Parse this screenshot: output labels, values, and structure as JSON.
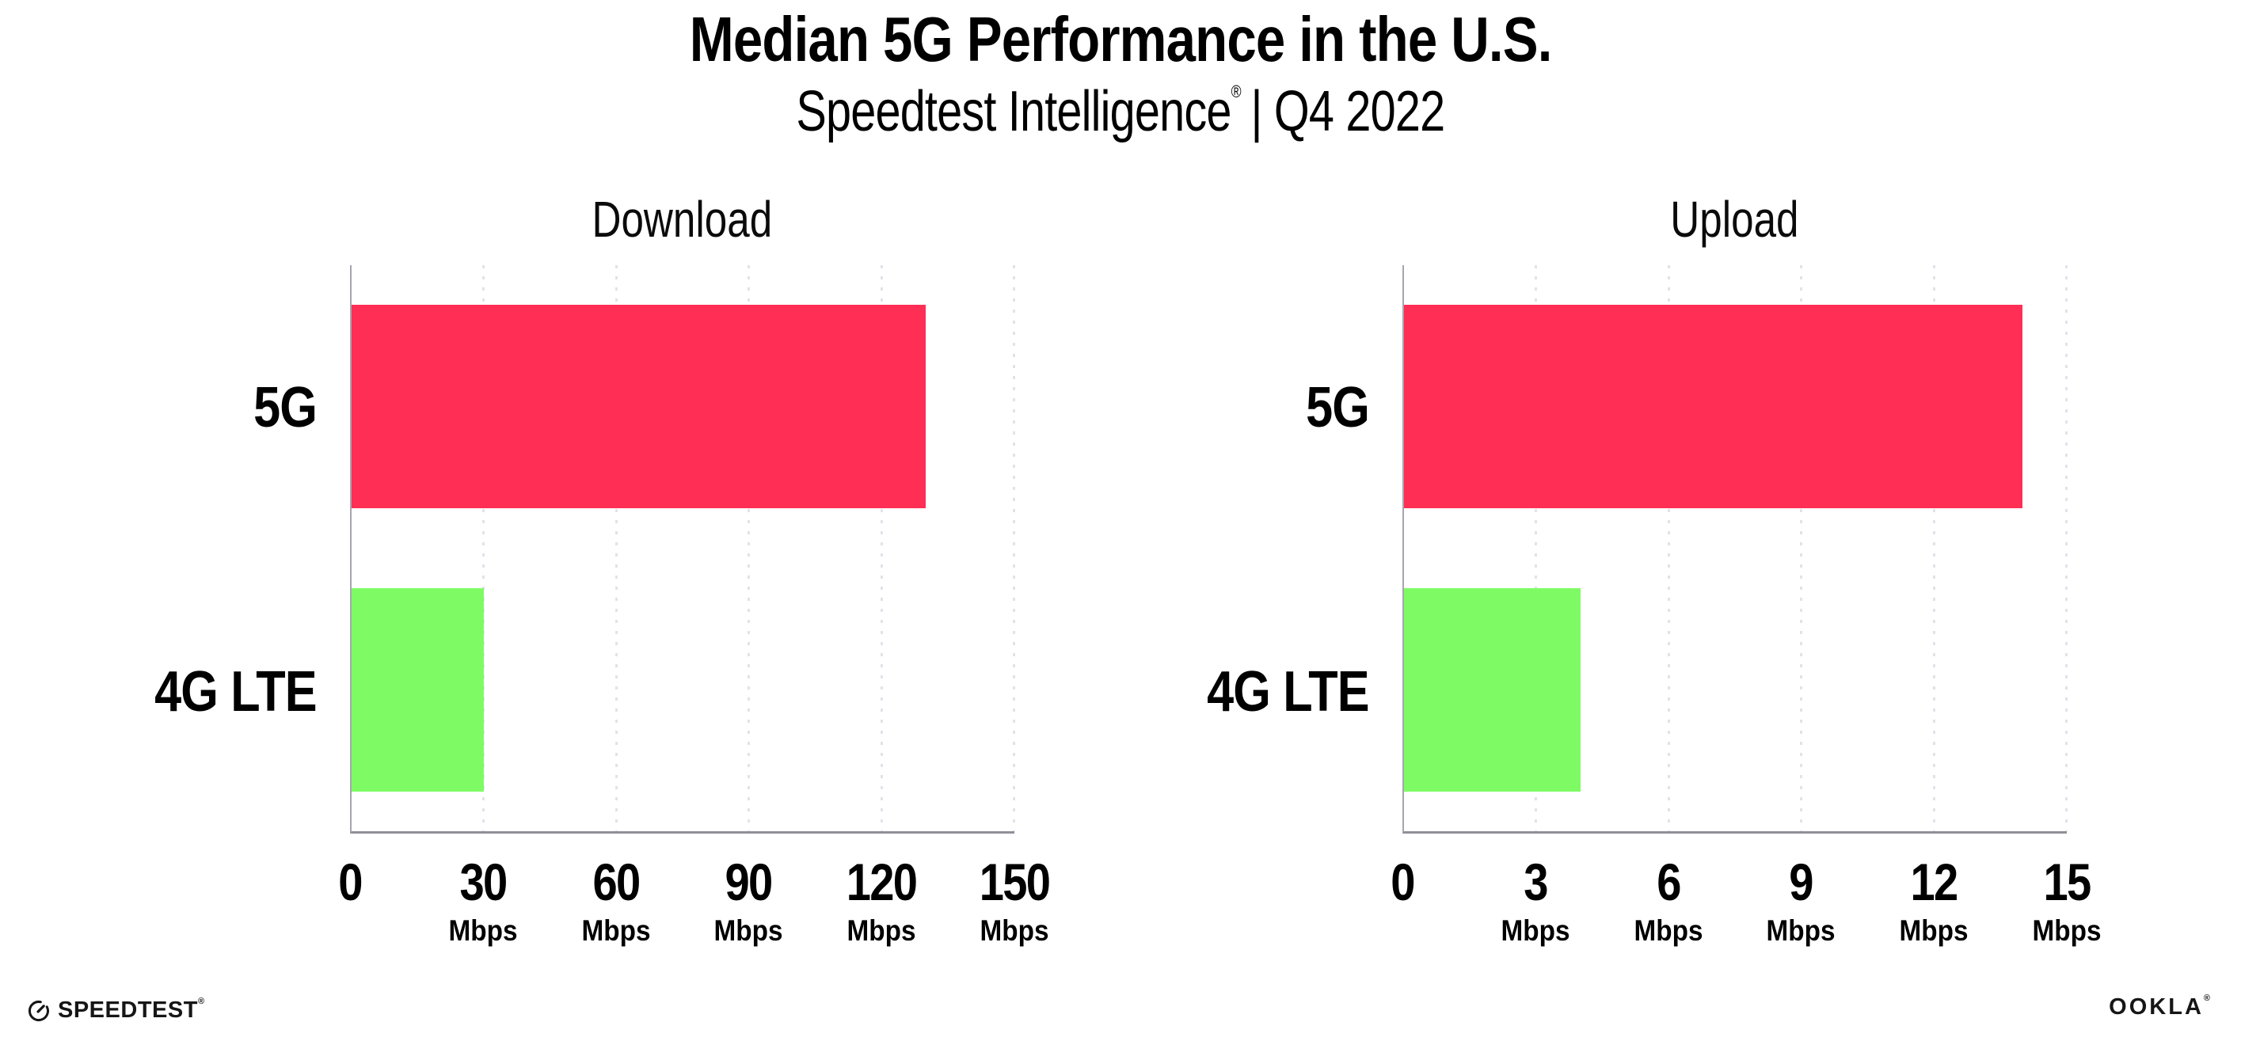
{
  "header": {
    "title": "Median 5G Performance in the U.S.",
    "subtitle_brand": "Speedtest Intelligence",
    "subtitle_mark": "®",
    "subtitle_rest": "| Q4 2022"
  },
  "chart_data": [
    {
      "type": "bar",
      "orientation": "horizontal",
      "title": "Download",
      "categories": [
        "5G",
        "4G LTE"
      ],
      "values": [
        130,
        30
      ],
      "unit": "Mbps",
      "xlim": [
        0,
        150
      ],
      "xticks": [
        0,
        30,
        60,
        90,
        120,
        150
      ],
      "bar_colors": [
        "#FF2E55",
        "#7EFB64"
      ],
      "grid": "vertical-dotted",
      "legend": "none"
    },
    {
      "type": "bar",
      "orientation": "horizontal",
      "title": "Upload",
      "categories": [
        "5G",
        "4G LTE"
      ],
      "values": [
        14,
        4
      ],
      "unit": "Mbps",
      "xlim": [
        0,
        15
      ],
      "xticks": [
        0,
        3,
        6,
        9,
        12,
        15
      ],
      "bar_colors": [
        "#FF2E55",
        "#7EFB64"
      ],
      "grid": "vertical-dotted",
      "legend": "none"
    }
  ],
  "footer": {
    "speedtest_label": "SPEEDTEST",
    "speedtest_mark": "®",
    "ookla_label": "OOKLA",
    "ookla_mark": "®"
  },
  "colors": {
    "bar_5g": "#FF2E55",
    "bar_4g": "#7EFB64",
    "gridline": "#E2E2EB",
    "axis": "#90909A",
    "text": "#000000"
  }
}
